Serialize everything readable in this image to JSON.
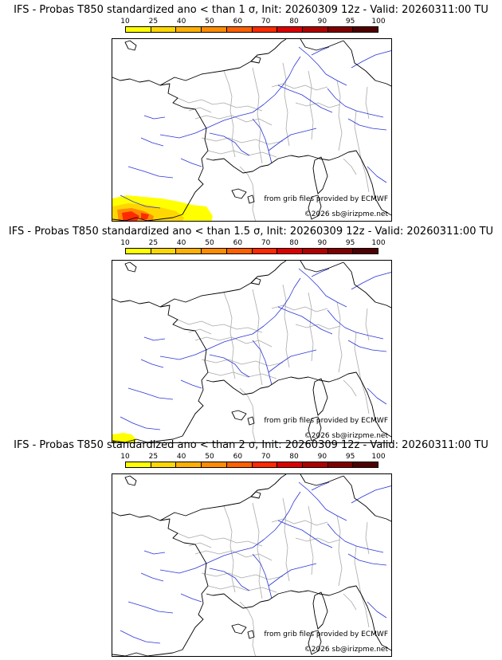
{
  "colors": {
    "scale": [
      "#ffff00",
      "#ffd700",
      "#ffb000",
      "#ff8c00",
      "#ff6000",
      "#ff2a00",
      "#dd0000",
      "#b00000",
      "#800000",
      "#500000"
    ],
    "coast": "#000000",
    "rivers": "#2a35d8",
    "borders": "#aaaaaa"
  },
  "scale_labels": [
    "10",
    "25",
    "40",
    "50",
    "60",
    "70",
    "80",
    "90",
    "95",
    "100"
  ],
  "panels": [
    {
      "title": "IFS - Probas T850  standardized ano < than 1 σ, Init: 20260309 12z - Valid: 20260311:00 TU",
      "grib_credit": "from grib files provided by ECMWF",
      "copyright": "©2026 sb@irizpme.net",
      "max_probability_band": "70-80",
      "region": "Bay of Biscay / northern Spain coast"
    },
    {
      "title": "IFS - Probas T850  standardized ano < than 1.5 σ, Init: 20260309 12z - Valid: 20260311:00 TU",
      "grib_credit": "from grib files provided by ECMWF",
      "copyright": "©2026 sb@irizpme.net",
      "max_probability_band": "10-25",
      "region": "southwest corner"
    },
    {
      "title": "IFS - Probas T850  standardized ano < than 2 σ, Init: 20260309 12z - Valid: 20260311:00 TU",
      "grib_credit": "from grib files provided by ECMWF",
      "copyright": "©2026 sb@irizpme.net",
      "max_probability_band": "none",
      "region": ""
    }
  ]
}
